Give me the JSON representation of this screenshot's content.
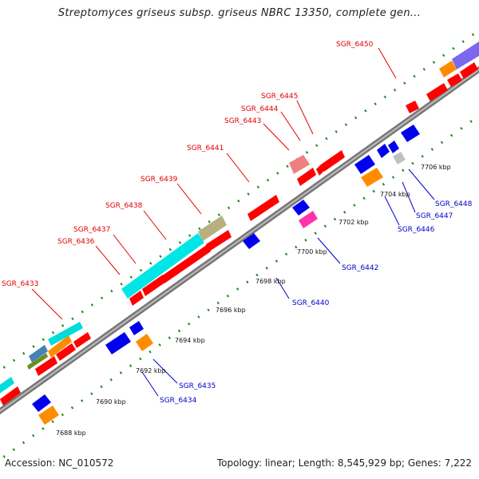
{
  "title": "Streptomyces griseus subsp. griseus NBRC 13350, complete gen...",
  "footer": {
    "accession": "Accession: NC_010572",
    "summary": "Topology: linear; Length: 8,545,929 bp; Genes: 7,222"
  },
  "ticks": [
    "7688 kbp",
    "7690 kbp",
    "7692 kbp",
    "7694 kbp",
    "7696 kbp",
    "7698 kbp",
    "7700 kbp",
    "7702 kbp",
    "7704 kbp",
    "7706 kbp"
  ],
  "genes_forward": [
    "SGR_6433",
    "SGR_6436",
    "SGR_6437",
    "SGR_6438",
    "SGR_6439",
    "SGR_6441",
    "SGR_6443",
    "SGR_6444",
    "SGR_6445",
    "SGR_6450"
  ],
  "genes_reverse": [
    "SGR_6434",
    "SGR_6435",
    "SGR_6440",
    "SGR_6442",
    "SGR_6446",
    "SGR_6447",
    "SGR_6448"
  ],
  "colors": {
    "forward_gene": "#ff0000",
    "reverse_gene": "#0000ee",
    "axis": "#888888",
    "tick_dots": "#1a8a1a",
    "label_forward": "#e00000",
    "label_reverse": "#0000cc",
    "orange_feature": "#ff8c00",
    "cyan_feature": "#00e5e5",
    "khaki_feature": "#b8b080",
    "magenta_feature": "#ff33aa",
    "pink_feature": "#f08080",
    "purple_feature": "#7b68ee"
  }
}
